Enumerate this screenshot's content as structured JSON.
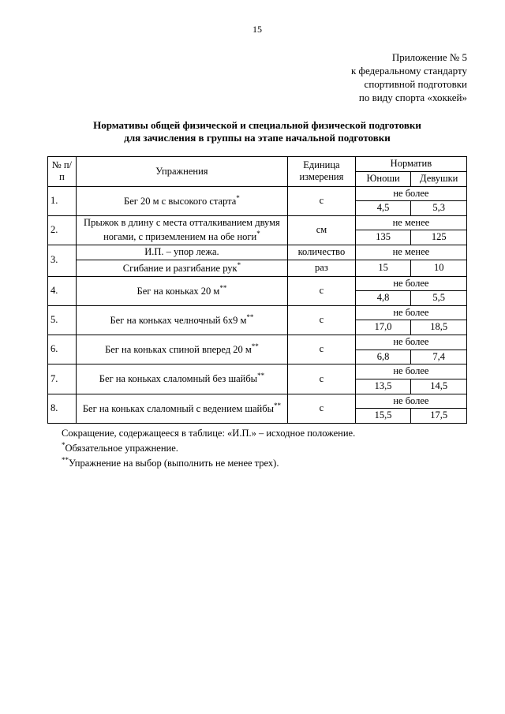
{
  "page_number": "15",
  "header_right": [
    "Приложение № 5",
    "к федеральному стандарту",
    "спортивной подготовки",
    "по виду спорта «хоккей»"
  ],
  "title_line1": "Нормативы общей физической и специальной физической подготовки",
  "title_line2": "для зачисления в группы на этапе начальной подготовки",
  "table": {
    "head": {
      "num": "№ п/п",
      "exercise": "Упражнения",
      "unit": "Единица измерения",
      "norm": "Норматив",
      "boys": "Юноши",
      "girls": "Девушки"
    },
    "rows": [
      {
        "n": "1.",
        "ex": "Бег 20 м с высокого старта",
        "star": "*",
        "unit": "с",
        "cond": "не более",
        "b": "4,5",
        "g": "5,3"
      },
      {
        "n": "2.",
        "ex": "Прыжок в длину с места отталкиванием двумя ногами, с приземлением на обе ноги",
        "star": "*",
        "unit": "см",
        "cond": "не менее",
        "b": "135",
        "g": "125"
      },
      {
        "n": "3.",
        "ex_l1": "И.П. – упор лежа.",
        "ex_l2": "Сгибание и разгибание рук",
        "star": "*",
        "unit_l1": "количество",
        "unit_l2": "раз",
        "cond": "не менее",
        "b": "15",
        "g": "10"
      },
      {
        "n": "4.",
        "ex": "Бег на коньках 20 м",
        "star": "**",
        "unit": "с",
        "cond": "не более",
        "b": "4,8",
        "g": "5,5"
      },
      {
        "n": "5.",
        "ex": "Бег на коньках челночный 6х9 м",
        "star": "**",
        "unit": "с",
        "cond": "не более",
        "b": "17,0",
        "g": "18,5"
      },
      {
        "n": "6.",
        "ex": "Бег на коньках спиной вперед 20 м",
        "star": "**",
        "unit": "с",
        "cond": "не более",
        "b": "6,8",
        "g": "7,4"
      },
      {
        "n": "7.",
        "ex": "Бег на коньках слаломный без шайбы",
        "star": "**",
        "unit": "с",
        "cond": "не более",
        "b": "13,5",
        "g": "14,5"
      },
      {
        "n": "8.",
        "ex": "Бег на коньках слаломный с ведением шайбы",
        "star": "**",
        "unit": "с",
        "cond": "не более",
        "b": "15,5",
        "g": "17,5"
      }
    ]
  },
  "notes": {
    "n1": "Сокращение, содержащееся в таблице: «И.П.» – исходное положение.",
    "n2_star": "*",
    "n2": "Обязательное упражнение.",
    "n3_star": "**",
    "n3": "Упражнение на выбор (выполнить не менее трех)."
  },
  "colors": {
    "text": "#000000",
    "background": "#ffffff",
    "border": "#000000"
  }
}
